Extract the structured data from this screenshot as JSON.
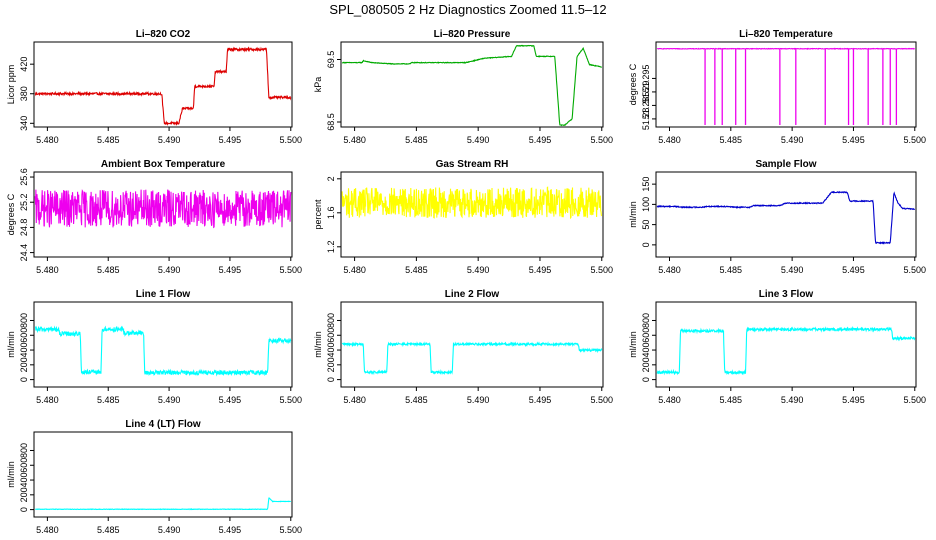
{
  "title": "SPL_080505  2 Hz Diagnostics Zoomed 11.5–12",
  "chart_data": [
    {
      "type": "line",
      "title": "Li–820 CO2",
      "ylabel": "Licor ppm",
      "color": "#dd0000",
      "xlim": [
        5.4789,
        5.5001
      ],
      "xticks": [
        "5.480",
        "5.485",
        "5.490",
        "5.495",
        "5.500"
      ],
      "ylim": [
        335,
        450
      ],
      "yticks": [
        340,
        380,
        420
      ],
      "x": [
        5.479,
        5.4894,
        5.4896,
        5.4908,
        5.4911,
        5.492,
        5.4921,
        5.4937,
        5.4938,
        5.4947,
        5.4948,
        5.498,
        5.4982,
        5.5
      ],
      "y": [
        380,
        380,
        340,
        340,
        360,
        360,
        390,
        390,
        410,
        410,
        440,
        440,
        375,
        375
      ],
      "noise": 1.5
    },
    {
      "type": "line",
      "title": "Li–820 Pressure",
      "ylabel": "kPa",
      "color": "#00aa00",
      "xlim": [
        5.4789,
        5.5001
      ],
      "xticks": [
        "5.480",
        "5.485",
        "5.490",
        "5.495",
        "5.500"
      ],
      "ylim": [
        68.42,
        69.78
      ],
      "yticks": [
        68.5,
        69.5
      ],
      "x": [
        5.479,
        5.4806,
        5.4807,
        5.4814,
        5.483,
        5.4845,
        5.4846,
        5.4866,
        5.4868,
        5.489,
        5.4905,
        5.4927,
        5.4931,
        5.4945,
        5.4947,
        5.4962,
        5.4966,
        5.497,
        5.4976,
        5.498,
        5.4985,
        5.499,
        5.5
      ],
      "y": [
        69.45,
        69.45,
        69.48,
        69.45,
        69.43,
        69.43,
        69.45,
        69.45,
        69.45,
        69.45,
        69.52,
        69.55,
        69.72,
        69.72,
        69.55,
        69.55,
        68.45,
        68.45,
        68.55,
        69.55,
        69.68,
        69.42,
        69.38
      ],
      "noise": 0.005
    },
    {
      "type": "line",
      "title": "Li–820 Temperature",
      "ylabel": "degrees C",
      "color": "#ee00ee",
      "xlim": [
        5.4789,
        5.5001
      ],
      "xticks": [
        "5.480",
        "5.485",
        "5.490",
        "5.495",
        "5.500"
      ],
      "ylim": [
        51.277,
        51.3085
      ],
      "yticks": [
        51.28,
        51.285,
        51.29,
        51.295
      ],
      "x": [
        5.479,
        5.5
      ],
      "y": [
        51.306,
        51.306
      ],
      "noise": 0.0001,
      "drops": [
        5.4829,
        5.4837,
        5.4843,
        5.4854,
        5.4862,
        5.489,
        5.4903,
        5.4927,
        5.4946,
        5.495,
        5.4962,
        5.4974,
        5.498,
        5.4985
      ]
    },
    {
      "type": "line",
      "title": "Ambient Box Temperature",
      "ylabel": "degrees C",
      "color": "#ee00ee",
      "xlim": [
        5.4789,
        5.5001
      ],
      "xticks": [
        "5.480",
        "5.485",
        "5.490",
        "5.495",
        "5.500"
      ],
      "ylim": [
        24.33,
        25.68
      ],
      "yticks": [
        24.4,
        24.8,
        25.2,
        25.6
      ],
      "x": [
        5.479,
        5.5
      ],
      "y": [
        25.1,
        25.1
      ],
      "noise": 0.3
    },
    {
      "type": "line",
      "title": "Gas Stream RH",
      "ylabel": "percent",
      "color": "#ffff00",
      "xlim": [
        5.4789,
        5.5001
      ],
      "xticks": [
        "5.480",
        "5.485",
        "5.490",
        "5.495",
        "5.500"
      ],
      "ylim": [
        1.08,
        2.08
      ],
      "yticks": [
        1.2,
        1.6,
        2.0
      ],
      "x": [
        5.479,
        5.5
      ],
      "y": [
        1.72,
        1.72
      ],
      "noise": 0.18
    },
    {
      "type": "line",
      "title": "Sample Flow",
      "ylabel": "ml/min",
      "color": "#0000cc",
      "xlim": [
        5.4789,
        5.5001
      ],
      "xticks": [
        "5.480",
        "5.485",
        "5.490",
        "5.495",
        "5.500"
      ],
      "ylim": [
        -30,
        180
      ],
      "yticks": [
        0,
        50,
        100,
        150
      ],
      "x": [
        5.479,
        5.4805,
        5.481,
        5.4826,
        5.4832,
        5.4848,
        5.4852,
        5.4866,
        5.4868,
        5.489,
        5.4895,
        5.4925,
        5.4932,
        5.4945,
        5.4947,
        5.4966,
        5.4968,
        5.498,
        5.4983,
        5.4986,
        5.499,
        5.5
      ],
      "y": [
        95,
        95,
        93,
        93,
        95,
        95,
        93,
        93,
        97,
        97,
        103,
        103,
        130,
        130,
        108,
        108,
        5,
        5,
        130,
        105,
        90,
        88
      ],
      "noise": 1.2
    },
    {
      "type": "line",
      "title": "Line 1 Flow",
      "ylabel": "ml/min",
      "color": "#00ffff",
      "xlim": [
        5.4789,
        5.5001
      ],
      "xticks": [
        "5.480",
        "5.485",
        "5.490",
        "5.495",
        "5.500"
      ],
      "ylim": [
        -100,
        1050
      ],
      "yticks": [
        0,
        200,
        400,
        600,
        800
      ],
      "x": [
        5.479,
        5.4809,
        5.481,
        5.4827,
        5.4828,
        5.4844,
        5.4845,
        5.4862,
        5.4863,
        5.4879,
        5.488,
        5.4981,
        5.4982,
        5.5
      ],
      "y": [
        680,
        680,
        620,
        620,
        100,
        100,
        680,
        680,
        630,
        630,
        95,
        95,
        530,
        530
      ],
      "noise": 30
    },
    {
      "type": "line",
      "title": "Line 2 Flow",
      "ylabel": "ml/min",
      "color": "#00ffff",
      "xlim": [
        5.4789,
        5.5001
      ],
      "xticks": [
        "5.480",
        "5.485",
        "5.490",
        "5.495",
        "5.500"
      ],
      "ylim": [
        -100,
        1050
      ],
      "yticks": [
        0,
        200,
        400,
        600,
        800
      ],
      "x": [
        5.479,
        5.4807,
        5.4808,
        5.4826,
        5.4827,
        5.4861,
        5.4862,
        5.4879,
        5.488,
        5.4981,
        5.4982,
        5.5
      ],
      "y": [
        480,
        480,
        100,
        100,
        480,
        480,
        100,
        100,
        480,
        480,
        400,
        400
      ],
      "noise": 15
    },
    {
      "type": "line",
      "title": "Line 3 Flow",
      "ylabel": "ml/min",
      "color": "#00ffff",
      "xlim": [
        5.4789,
        5.5001
      ],
      "xticks": [
        "5.480",
        "5.485",
        "5.490",
        "5.495",
        "5.500"
      ],
      "ylim": [
        -100,
        1050
      ],
      "yticks": [
        0,
        200,
        400,
        600,
        800
      ],
      "x": [
        5.479,
        5.4808,
        5.4809,
        5.4844,
        5.4845,
        5.4862,
        5.4863,
        5.4981,
        5.4982,
        5.5
      ],
      "y": [
        100,
        100,
        660,
        660,
        100,
        100,
        680,
        680,
        560,
        560
      ],
      "noise": 18
    },
    {
      "type": "line",
      "title": "Line 4 (LT) Flow",
      "ylabel": "ml/min",
      "color": "#00ffff",
      "xlim": [
        5.4789,
        5.5001
      ],
      "xticks": [
        "5.480",
        "5.485",
        "5.490",
        "5.495",
        "5.500"
      ],
      "ylim": [
        -100,
        1050
      ],
      "yticks": [
        0,
        200,
        400,
        600,
        800
      ],
      "x": [
        5.479,
        5.4981,
        5.4982,
        5.4985,
        5.5
      ],
      "y": [
        5,
        5,
        160,
        110,
        110
      ],
      "noise": 3
    }
  ]
}
